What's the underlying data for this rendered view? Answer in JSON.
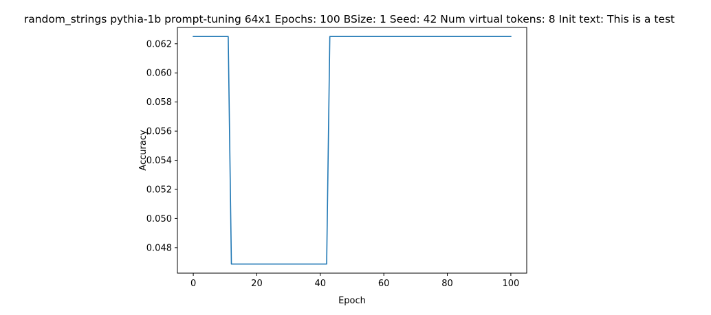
{
  "chart_data": {
    "type": "line",
    "title": "random_strings pythia-1b prompt-tuning 64x1 Epochs: 100 BSize: 1 Seed: 42 Num virtual tokens: 8 Init text: This is a test",
    "xlabel": "Epoch",
    "ylabel": "Accuracy",
    "xlim": [
      -5,
      105
    ],
    "ylim": [
      0.04625,
      0.06312
    ],
    "xticks": [
      0,
      20,
      40,
      60,
      80,
      100
    ],
    "xtick_labels": [
      "0",
      "20",
      "40",
      "60",
      "80",
      "100"
    ],
    "yticks": [
      0.048,
      0.05,
      0.052,
      0.054,
      0.056,
      0.058,
      0.06,
      0.062
    ],
    "ytick_labels": [
      "0.048",
      "0.050",
      "0.052",
      "0.054",
      "0.056",
      "0.058",
      "0.060",
      "0.062"
    ],
    "grid": false,
    "series": [
      {
        "color": "#1f77b4",
        "x": [
          0,
          11,
          12,
          42,
          43,
          100
        ],
        "y": [
          0.0625,
          0.0625,
          0.046875,
          0.046875,
          0.0625,
          0.0625
        ]
      }
    ]
  }
}
